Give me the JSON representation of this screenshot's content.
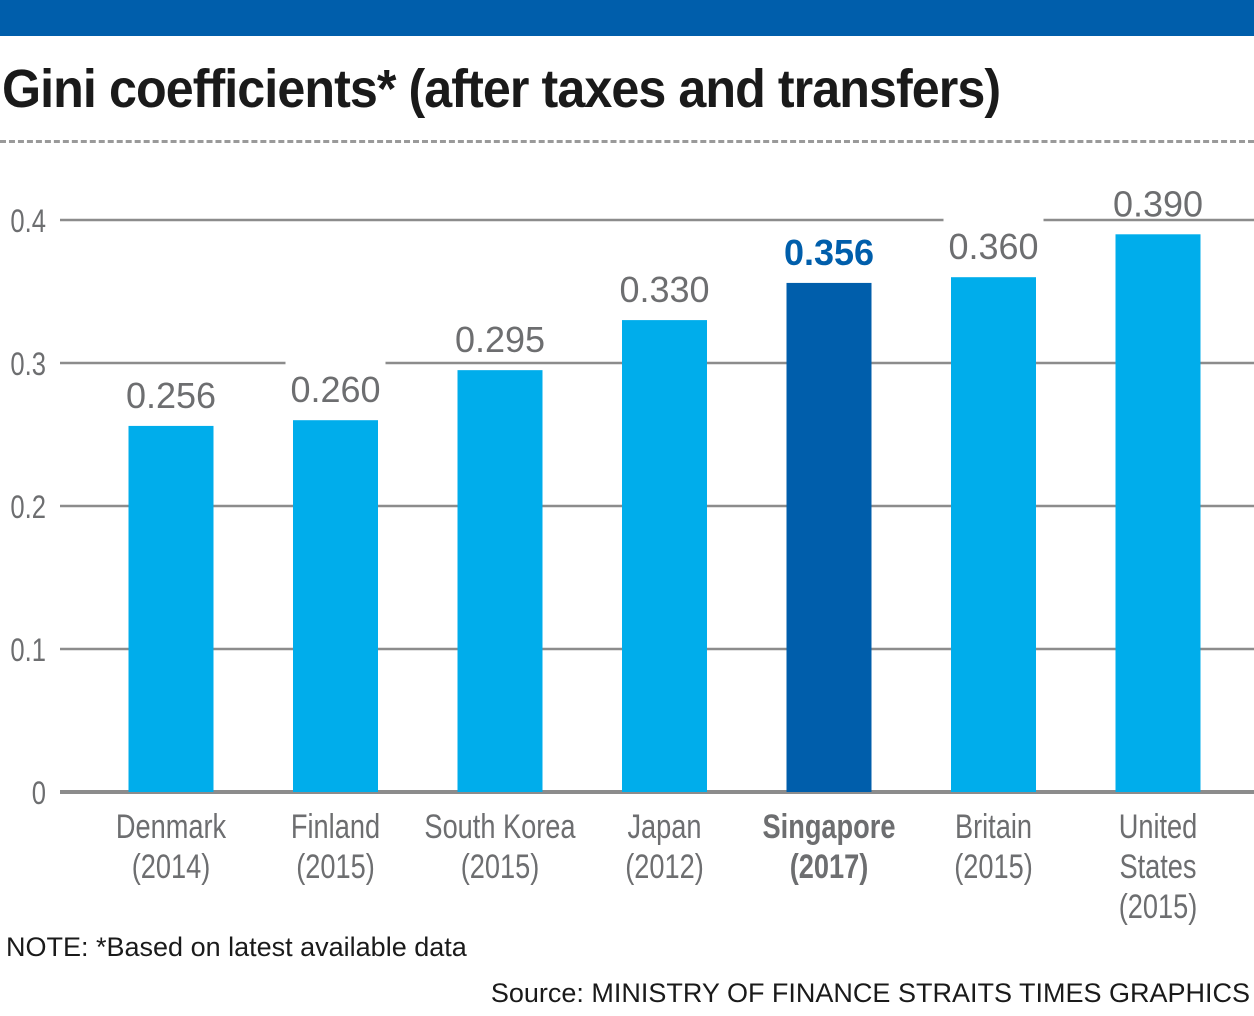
{
  "header": {
    "title": "Gini coefficients* (after taxes and transfers)"
  },
  "footer": {
    "note": "NOTE: *Based on latest available data",
    "source": "Source: MINISTRY OF FINANCE   STRAITS TIMES GRAPHICS"
  },
  "colors": {
    "topbar": "#005eab",
    "bar": "#00adeb",
    "highlight_bar": "#005eab",
    "highlight_label": "#005eab",
    "value_label": "#6d6e70",
    "grid": "#8c8c8c"
  },
  "chart_data": {
    "type": "bar",
    "title": "Gini coefficients* (after taxes and transfers)",
    "xlabel": "",
    "ylabel": "",
    "categories": [
      [
        "Denmark",
        "(2014)"
      ],
      [
        "Finland",
        "(2015)"
      ],
      [
        "South Korea",
        "(2015)"
      ],
      [
        "Japan",
        "(2012)"
      ],
      [
        "Singapore",
        "(2017)"
      ],
      [
        "Britain",
        "(2015)"
      ],
      [
        "United",
        "States",
        "(2015)"
      ]
    ],
    "values": [
      0.256,
      0.26,
      0.295,
      0.33,
      0.356,
      0.36,
      0.39
    ],
    "value_labels": [
      "0.256",
      "0.260",
      "0.295",
      "0.330",
      "0.356",
      "0.360",
      "0.390"
    ],
    "highlight_index": 4,
    "ylim": [
      0,
      0.4
    ],
    "yticks": [
      0,
      0.1,
      0.2,
      0.3,
      0.4
    ],
    "ytick_labels": [
      "0",
      "0.1",
      "0.2",
      "0.3",
      "0.4"
    ],
    "grid": true,
    "legend": "none"
  }
}
